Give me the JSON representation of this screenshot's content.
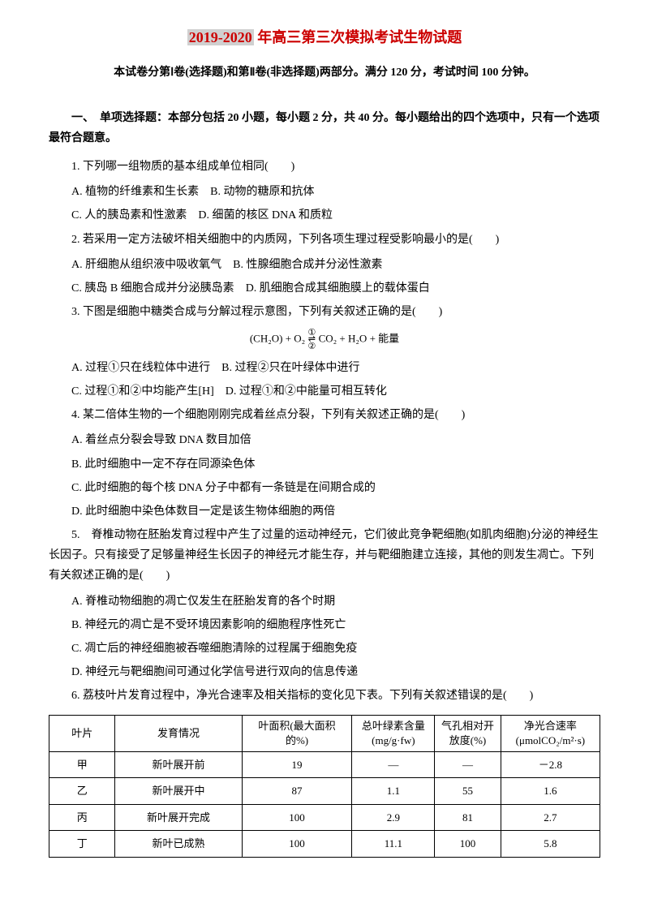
{
  "title": {
    "year_range": "2019-2020",
    "rest": " 年高三第三次模拟考试生物试题"
  },
  "subtitle": "本试卷分第Ⅰ卷(选择题)和第Ⅱ卷(非选择题)两部分。满分 120 分，考试时间 100 分钟。",
  "section1": {
    "header": "一、　单项选择题：本部分包括 20 小题，每小题 2 分，共 40 分。每小题给出的四个选项中，只有一个选项最符合题意。"
  },
  "q1": {
    "stem": "1. 下列哪一组物质的基本组成单位相同(　　)",
    "optA": "A. 植物的纤维素和生长素",
    "optB": "B. 动物的糖原和抗体",
    "optC": "C. 人的胰岛素和性激素",
    "optD": "D. 细菌的核区 DNA 和质粒"
  },
  "q2": {
    "stem": "2. 若采用一定方法破坏相关细胞中的内质网，下列各项生理过程受影响最小的是(　　)",
    "optA": "A. 肝细胞从组织液中吸收氧气",
    "optB": "B. 性腺细胞合成并分泌性激素",
    "optC": "C. 胰岛 B 细胞合成并分泌胰岛素",
    "optD": "D. 肌细胞合成其细胞膜上的载体蛋白"
  },
  "q3": {
    "stem": "3. 下图是细胞中糖类合成与分解过程示意图，下列有关叙述正确的是(　　)",
    "formula_left": "(CH₂O) + O₂",
    "formula_arrow_top": "①",
    "formula_arrow_bot": "②",
    "formula_right": "CO₂ + H₂O + 能量",
    "optA": "A. 过程①只在线粒体中进行",
    "optB": "B. 过程②只在叶绿体中进行",
    "optC": "C. 过程①和②中均能产生[H]",
    "optD": "D. 过程①和②中能量可相互转化"
  },
  "q4": {
    "stem": "4. 某二倍体生物的一个细胞刚刚完成着丝点分裂，下列有关叙述正确的是(　　)",
    "optA": "A. 着丝点分裂会导致 DNA 数目加倍",
    "optB": "B. 此时细胞中一定不存在同源染色体",
    "optC": "C. 此时细胞的每个核 DNA 分子中都有一条链是在间期合成的",
    "optD": "D. 此时细胞中染色体数目一定是该生物体细胞的两倍"
  },
  "q5": {
    "stem": "5.　脊椎动物在胚胎发育过程中产生了过量的运动神经元，它们彼此竞争靶细胞(如肌肉细胞)分泌的神经生长因子。只有接受了足够量神经生长因子的神经元才能生存，并与靶细胞建立连接，其他的则发生凋亡。下列有关叙述正确的是(　　)",
    "optA": "A. 脊椎动物细胞的凋亡仅发生在胚胎发育的各个时期",
    "optB": "B. 神经元的凋亡是不受环境因素影响的细胞程序性死亡",
    "optC": "C. 凋亡后的神经细胞被吞噬细胞清除的过程属于细胞免疫",
    "optD": "D. 神经元与靶细胞间可通过化学信号进行双向的信息传递"
  },
  "q6": {
    "stem": "6. 荔枝叶片发育过程中，净光合速率及相关指标的变化见下表。下列有关叙述错误的是(　　)"
  },
  "table": {
    "headers": {
      "leaf": "叶片",
      "development": "发育情况",
      "area": "叶面积(最大面积的%)",
      "chlorophyll": "总叶绿素含量(mg/g·fw)",
      "stomata": "气孔相对开放度(%)",
      "rate": "净光合速率(μmolCO₂/m²·s)"
    },
    "rows": [
      {
        "leaf": "甲",
        "dev": "新叶展开前",
        "area": "19",
        "chl": "—",
        "stom": "—",
        "rate": "－2.8"
      },
      {
        "leaf": "乙",
        "dev": "新叶展开中",
        "area": "87",
        "chl": "1.1",
        "stom": "55",
        "rate": "1.6"
      },
      {
        "leaf": "丙",
        "dev": "新叶展开完成",
        "area": "100",
        "chl": "2.9",
        "stom": "81",
        "rate": "2.7"
      },
      {
        "leaf": "丁",
        "dev": "新叶已成熟",
        "area": "100",
        "chl": "11.1",
        "stom": "100",
        "rate": "5.8"
      }
    ]
  }
}
